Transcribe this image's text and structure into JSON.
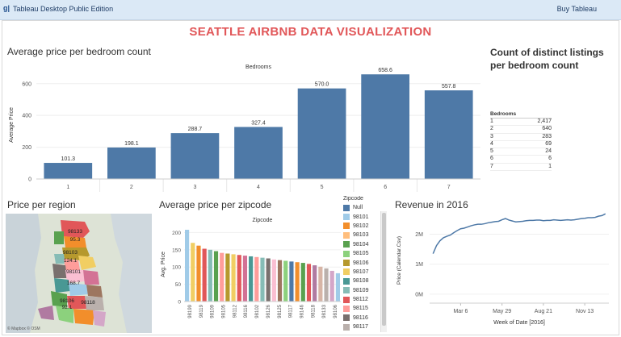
{
  "topbar": {
    "logo": "g|",
    "title": "Tableau Desktop Public Edition",
    "buy_label": "Buy Tableau"
  },
  "dashboard_title": "SEATTLE AIRBNB DATA VISUALIZATION",
  "bedroom_chart": {
    "title": "Average price per bedroom count",
    "header": "Bedrooms",
    "ylabel": "Average Price",
    "chart_data": {
      "type": "bar",
      "categories": [
        "1",
        "2",
        "3",
        "4",
        "5",
        "6",
        "7"
      ],
      "values": [
        101.3,
        198.1,
        288.7,
        327.4,
        570.0,
        658.6,
        557.8
      ],
      "labels": [
        "101.3",
        "198.1",
        "288.7",
        "327.4",
        "570.0",
        "658.6",
        "557.8"
      ],
      "yticks": [
        0,
        200,
        400,
        600
      ],
      "ylim": [
        0,
        680
      ],
      "color": "#4e79a7"
    }
  },
  "count_table": {
    "title": "Count of distinct listings per bedroom count",
    "header": "Bedrooms",
    "rows": [
      {
        "k": "1",
        "v": "2,417"
      },
      {
        "k": "2",
        "v": "640"
      },
      {
        "k": "3",
        "v": "283"
      },
      {
        "k": "4",
        "v": "69"
      },
      {
        "k": "5",
        "v": "24"
      },
      {
        "k": "6",
        "v": "6"
      },
      {
        "k": "7",
        "v": "1"
      }
    ]
  },
  "region_map": {
    "title": "Price per region",
    "labels": [
      "98133",
      "95.3",
      "98103",
      "124.1",
      "98101",
      "168.7",
      "98106",
      "92.1",
      "98118"
    ],
    "credit": "© Mapbox © OSM"
  },
  "zip_chart": {
    "title": "Average price per zipcode",
    "header": "Zipcode",
    "ylabel": "Avg. Price",
    "chart_data": {
      "type": "bar",
      "yticks": [
        0,
        50,
        100,
        150,
        200
      ],
      "ylim": [
        0,
        215
      ],
      "values": [
        208,
        170,
        162,
        153,
        150,
        146,
        141,
        139,
        137,
        135,
        133,
        131,
        129,
        127,
        125,
        122,
        120,
        118,
        116,
        114,
        112,
        109,
        105,
        101,
        96,
        89,
        82
      ],
      "colors": [
        "#a0cbe8",
        "#f1ce63",
        "#f28e2b",
        "#e15759",
        "#86bcb6",
        "#59a14f",
        "#ff9d9a",
        "#b6992d",
        "#f1ce63",
        "#e15759",
        "#d37295",
        "#499894",
        "#ff9d9a",
        "#86bcb6",
        "#79706e",
        "#fabfd2",
        "#9d7660",
        "#8cd17d",
        "#4e79a7",
        "#f28e2b",
        "#59a14f",
        "#e15759",
        "#b07aa1",
        "#d7b5a6",
        "#bab0ac",
        "#d4a6c8",
        "#a0cbe8"
      ],
      "xlabels": [
        "98199",
        "98119",
        "98109",
        "98105",
        "98112",
        "98116",
        "98102",
        "98126",
        "98125",
        "98117",
        "98146",
        "98118",
        "98133",
        "98106"
      ]
    }
  },
  "zip_legend": {
    "title": "Zipcode",
    "items": [
      {
        "label": "Null",
        "color": "#4e79a7"
      },
      {
        "label": "98101",
        "color": "#a0cbe8"
      },
      {
        "label": "98102",
        "color": "#f28e2b"
      },
      {
        "label": "98103",
        "color": "#ffbe7d"
      },
      {
        "label": "98104",
        "color": "#59a14f"
      },
      {
        "label": "98105",
        "color": "#8cd17d"
      },
      {
        "label": "98106",
        "color": "#b6992d"
      },
      {
        "label": "98107",
        "color": "#f1ce63"
      },
      {
        "label": "98108",
        "color": "#499894"
      },
      {
        "label": "98109",
        "color": "#86bcb6"
      },
      {
        "label": "98112",
        "color": "#e15759"
      },
      {
        "label": "98115",
        "color": "#ff9d9a"
      },
      {
        "label": "98116",
        "color": "#79706e"
      },
      {
        "label": "98117",
        "color": "#bab0ac"
      }
    ]
  },
  "revenue_chart": {
    "title": "Revenue in 2016",
    "ylabel": "Price (Calendar.Csv)",
    "xlabel": "Week of Date [2016]",
    "chart_data": {
      "type": "line",
      "yticks": [
        {
          "v": 0,
          "l": "0M"
        },
        {
          "v": 1,
          "l": "1M"
        },
        {
          "v": 2,
          "l": "2M"
        }
      ],
      "ylim": [
        -0.3,
        2.55
      ],
      "xticks": [
        {
          "w": 9,
          "l": "Mar 6"
        },
        {
          "w": 21,
          "l": "May 29"
        },
        {
          "w": 33,
          "l": "Aug 21"
        },
        {
          "w": 45,
          "l": "Nov 13"
        }
      ],
      "xlim": [
        0,
        52
      ],
      "values": [
        1.35,
        1.62,
        1.78,
        1.88,
        1.93,
        1.97,
        2.05,
        2.12,
        2.18,
        2.2,
        2.24,
        2.28,
        2.31,
        2.33,
        2.33,
        2.35,
        2.38,
        2.4,
        2.42,
        2.43,
        2.48,
        2.52,
        2.47,
        2.44,
        2.41,
        2.42,
        2.43,
        2.45,
        2.46,
        2.46,
        2.47,
        2.47,
        2.45,
        2.46,
        2.46,
        2.48,
        2.47,
        2.46,
        2.47,
        2.48,
        2.47,
        2.48,
        2.5,
        2.52,
        2.53,
        2.55,
        2.55,
        2.56,
        2.6,
        2.62,
        2.68
      ],
      "color": "#4e79a7"
    }
  }
}
